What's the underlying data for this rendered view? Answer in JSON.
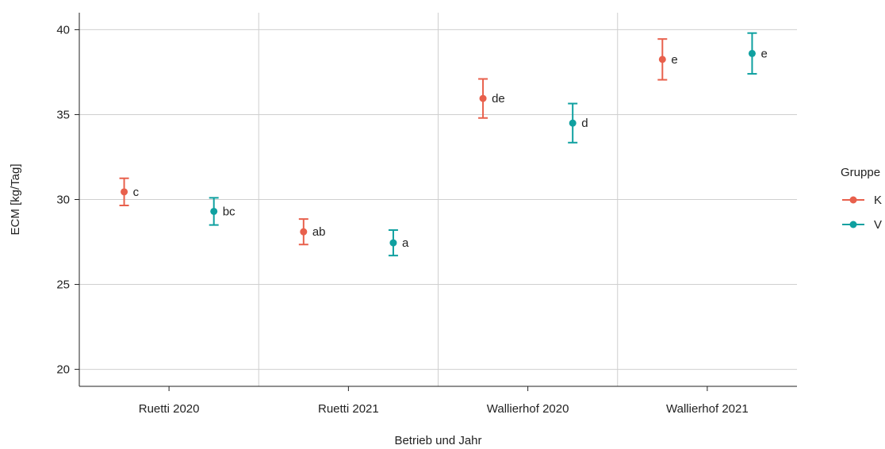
{
  "chart_data": {
    "type": "scatter",
    "xlabel": "Betrieb und Jahr",
    "ylabel": "ECM [kg/Tag]",
    "ylim": [
      19,
      41
    ],
    "yticks": [
      20,
      25,
      30,
      35,
      40
    ],
    "categories": [
      "Ruetti 2020",
      "Ruetti 2021",
      "Wallierhof 2020",
      "Wallierhof 2021"
    ],
    "grid": "horizontal and vertical",
    "legend": {
      "title": "Gruppe",
      "position": "right"
    },
    "series": [
      {
        "name": "K",
        "color": "#E8604C",
        "points": [
          {
            "category": "Ruetti 2020",
            "mean": 30.45,
            "lower": 29.65,
            "upper": 31.25,
            "label": "c"
          },
          {
            "category": "Ruetti 2021",
            "mean": 28.1,
            "lower": 27.35,
            "upper": 28.85,
            "label": "ab"
          },
          {
            "category": "Wallierhof 2020",
            "mean": 35.95,
            "lower": 34.8,
            "upper": 37.1,
            "label": "de"
          },
          {
            "category": "Wallierhof 2021",
            "mean": 38.25,
            "lower": 37.05,
            "upper": 39.45,
            "label": "e"
          }
        ]
      },
      {
        "name": "V",
        "color": "#0FA0A0",
        "points": [
          {
            "category": "Ruetti 2020",
            "mean": 29.3,
            "lower": 28.5,
            "upper": 30.1,
            "label": "bc"
          },
          {
            "category": "Ruetti 2021",
            "mean": 27.45,
            "lower": 26.7,
            "upper": 28.2,
            "label": "a"
          },
          {
            "category": "Wallierhof 2020",
            "mean": 34.5,
            "lower": 33.35,
            "upper": 35.65,
            "label": "d"
          },
          {
            "category": "Wallierhof 2021",
            "mean": 38.6,
            "lower": 37.4,
            "upper": 39.8,
            "label": "e"
          }
        ]
      }
    ]
  }
}
